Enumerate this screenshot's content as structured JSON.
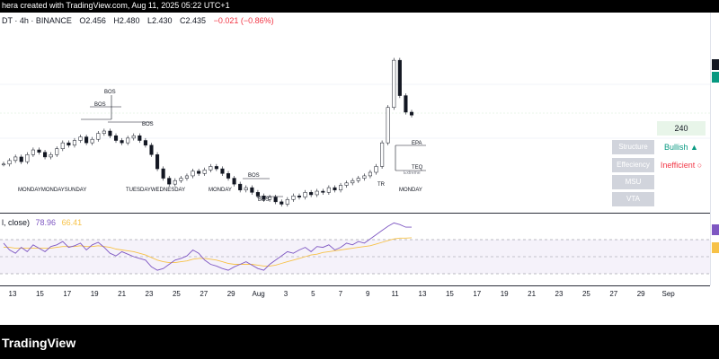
{
  "header": {
    "title": "hera created with TradingView.com, Aug 11, 2025 05:22 UTC+1"
  },
  "legend": {
    "symbol": "DT · 4h · BINANCE",
    "open": "O2.456",
    "high": "H2.480",
    "low": "L2.430",
    "close": "C2.435",
    "change": "−0.021 (−0.86%)"
  },
  "rsi_legend": {
    "label": "l, close)",
    "value1": "78.96",
    "value2": "66.41"
  },
  "panel": {
    "timeframe": "240",
    "buttons": [
      "Structure",
      "Effeciency",
      "MSU",
      "VTA"
    ],
    "structure_status": "Bullish ▲",
    "efficiency_status": "Inefficient ○"
  },
  "chart_labels": {
    "bos": "BOS",
    "epa": "EPA",
    "teq": "TEQ",
    "extreme": "Extreme",
    "monday": "MONDAY",
    "monday_cluster": "MONDAYMONDAYSUNDAY",
    "tuesday_cluster": "TUESDAYWEDNESDAY",
    "tr": "TR"
  },
  "time_axis": [
    "13",
    "15",
    "17",
    "19",
    "21",
    "23",
    "25",
    "27",
    "29",
    "Aug",
    "3",
    "5",
    "7",
    "9",
    "11",
    "13",
    "15",
    "17",
    "19",
    "21",
    "23",
    "25",
    "27",
    "29",
    "Sep"
  ],
  "footer": {
    "brand": "TradingView"
  },
  "colors": {
    "up": "#089981",
    "down": "#f23645",
    "rsi": "#7e57c2",
    "rsi_ma": "#f7c248",
    "rsi_band": "#7e57c2"
  },
  "chart_data": {
    "type": "line",
    "xlabel": "",
    "ylabel": "",
    "series": [
      {
        "values": [
          2.02,
          2.05,
          2.08,
          2.04,
          2.1,
          2.14,
          2.12,
          2.08,
          2.1,
          2.15,
          2.2,
          2.18,
          2.22,
          2.25,
          2.2,
          2.23,
          2.28,
          2.3,
          2.26,
          2.22,
          2.2,
          2.24,
          2.26,
          2.22,
          2.18,
          2.1,
          1.98,
          1.9,
          1.85,
          1.88,
          1.9,
          1.92,
          1.96,
          1.94,
          1.97,
          2.0,
          1.98,
          1.94,
          1.9,
          1.85,
          1.8,
          1.82,
          1.78,
          1.75,
          1.72,
          1.74,
          1.7,
          1.68,
          1.72,
          1.75,
          1.74,
          1.78,
          1.76,
          1.79,
          1.78,
          1.82,
          1.8,
          1.84,
          1.86,
          1.88,
          1.9,
          1.92,
          1.95,
          2.0,
          2.2,
          2.5,
          2.9,
          2.6,
          2.46,
          2.435
        ]
      }
    ],
    "rsi": [
      60,
      52,
      48,
      55,
      50,
      58,
      54,
      50,
      56,
      58,
      62,
      55,
      57,
      60,
      52,
      58,
      61,
      55,
      48,
      45,
      50,
      47,
      44,
      42,
      40,
      32,
      28,
      30,
      35,
      40,
      42,
      45,
      52,
      48,
      40,
      35,
      33,
      30,
      28,
      32,
      35,
      38,
      34,
      30,
      28,
      35,
      40,
      45,
      50,
      48,
      52,
      55,
      50,
      56,
      55,
      58,
      52,
      55,
      60,
      58,
      62,
      60,
      65,
      70,
      75,
      80,
      84,
      82,
      79,
      78.96
    ],
    "rsi_ma": [
      55,
      55,
      54,
      54,
      54,
      54,
      54,
      54,
      54,
      55,
      56,
      56,
      56,
      57,
      56,
      56,
      57,
      56,
      55,
      53,
      52,
      51,
      50,
      48,
      46,
      43,
      40,
      38,
      37,
      37,
      38,
      39,
      41,
      42,
      42,
      41,
      40,
      38,
      36,
      35,
      35,
      35,
      35,
      34,
      33,
      33,
      34,
      36,
      38,
      40,
      42,
      44,
      46,
      47,
      49,
      50,
      51,
      52,
      53,
      54,
      55,
      56,
      57,
      59,
      61,
      63,
      65,
      66,
      66,
      66.41
    ],
    "rsi_levels": [
      70,
      50,
      30
    ]
  }
}
